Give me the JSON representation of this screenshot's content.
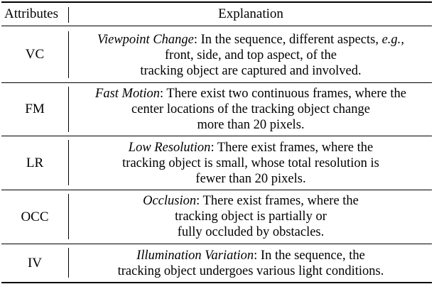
{
  "header": {
    "attributes": "Attributes",
    "explanation": "Explanation"
  },
  "rows": [
    {
      "attr": "VC",
      "lines": [
        {
          "term": "Viewpoint Change",
          "text": ": In the sequence, different aspects, ",
          "eg": "e.g.",
          "tail": ","
        },
        {
          "text": "front, side, and top aspect, of the"
        },
        {
          "text": "tracking object are captured and involved."
        }
      ]
    },
    {
      "attr": "FM",
      "lines": [
        {
          "term": "Fast Motion",
          "text": ": There exist two continuous frames, where the"
        },
        {
          "text": "center locations of the tracking object change"
        },
        {
          "text": "more than 20 pixels."
        }
      ]
    },
    {
      "attr": "LR",
      "lines": [
        {
          "term": "Low Resolution",
          "text": ": There exist frames, where the"
        },
        {
          "text": "tracking object is small, whose total resolution is"
        },
        {
          "text": "fewer than 20 pixels."
        }
      ]
    },
    {
      "attr": "OCC",
      "lines": [
        {
          "term": "Occlusion",
          "text": ": There exist frames, where the"
        },
        {
          "text": "tracking object is partially or"
        },
        {
          "text": "fully occluded by obstacles."
        }
      ]
    },
    {
      "attr": "IV",
      "lines": [
        {
          "term": "Illumination Variation",
          "text": ": In the sequence, the"
        },
        {
          "text": "tracking object undergoes various light conditions."
        }
      ]
    }
  ]
}
